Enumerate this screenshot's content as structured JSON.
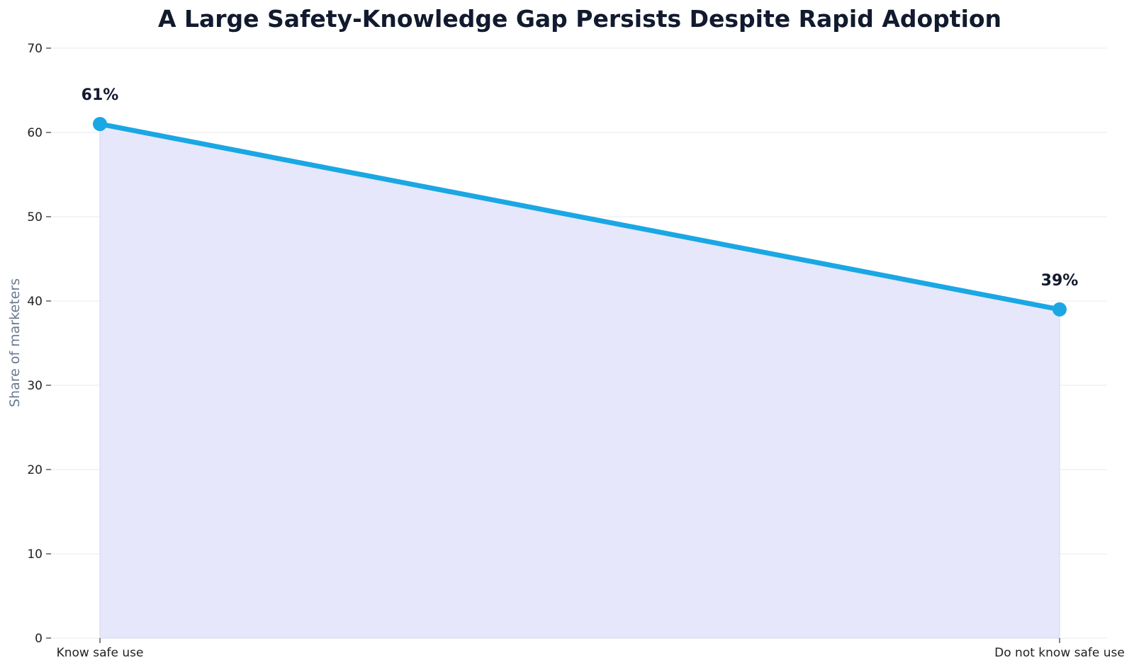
{
  "chart_data": {
    "type": "area",
    "title": "A Large Safety-Knowledge Gap Persists Despite Rapid Adoption",
    "xlabel": "",
    "ylabel": "Share of marketers",
    "categories": [
      "Know safe use",
      "Do not know safe use"
    ],
    "series": [
      {
        "values": [
          61,
          39
        ],
        "data_labels": [
          "61%",
          "39%"
        ]
      }
    ],
    "ylim": [
      0,
      70
    ],
    "yticks": [
      0,
      10,
      20,
      30,
      40,
      50,
      60,
      70
    ],
    "grid": "horizontal",
    "legend": "none",
    "colors": {
      "line": "#1aa7e4",
      "fill": "#e6e7fa",
      "grid": "#e8e8ee",
      "title": "#111a2e",
      "axis_title": "#6b7a90"
    }
  }
}
